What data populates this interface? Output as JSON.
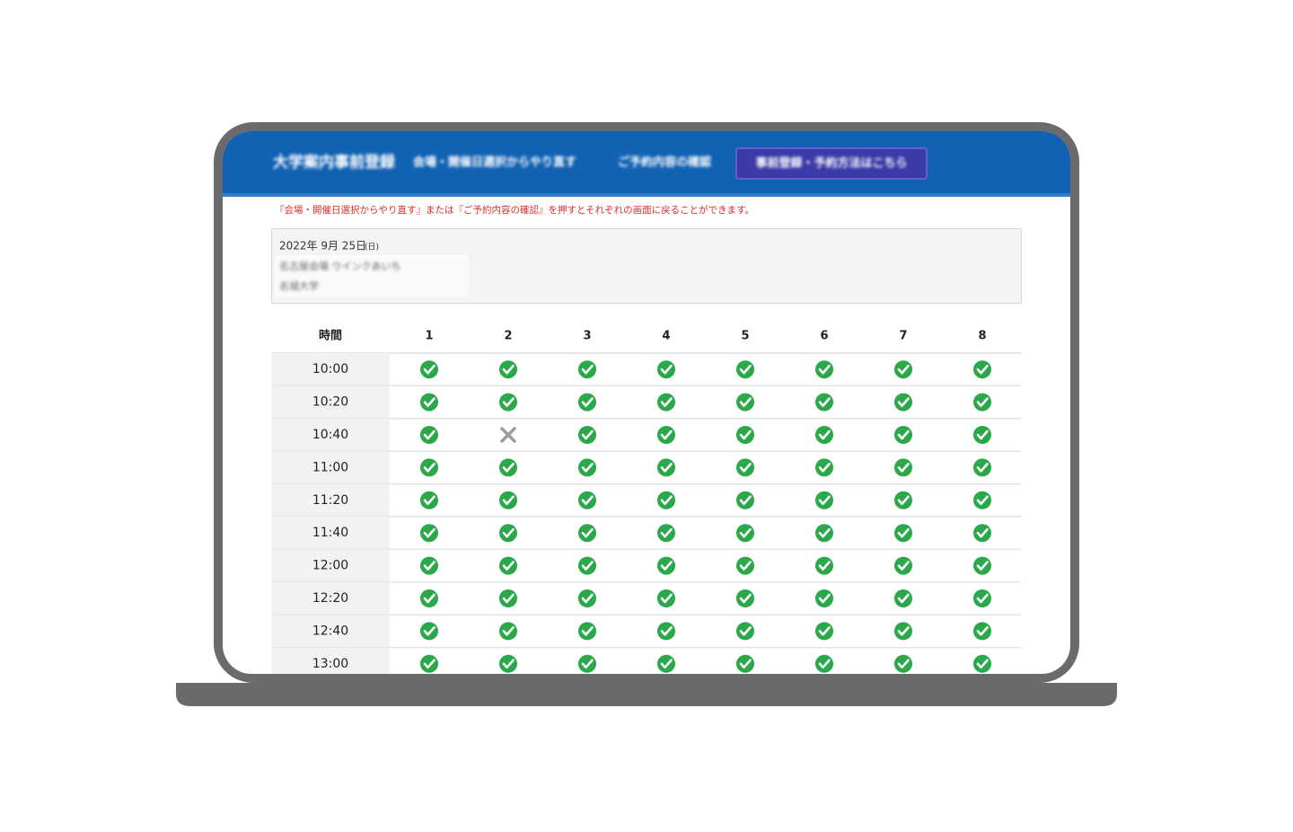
{
  "header": {
    "brand": "大学案内事前登録",
    "nav": [
      "会場・開催日選択からやり直す",
      "ご予約内容の確認"
    ],
    "button": "事前登録・予約方法はこちら"
  },
  "notice": "『会場・開催日選択からやり直す』または『ご予約内容の確認』を押すとそれぞれの画面に戻ることができます。",
  "event": {
    "date": "2022年 9月 25日",
    "weekday": "(日)",
    "venue": "名古屋会場 ウインクあいち",
    "host": "名城大学"
  },
  "table": {
    "headers": [
      "時間",
      "1",
      "2",
      "3",
      "4",
      "5",
      "6",
      "7",
      "8"
    ],
    "rows": [
      {
        "time": "10:00",
        "slots": [
          true,
          true,
          true,
          true,
          true,
          true,
          true,
          true
        ]
      },
      {
        "time": "10:20",
        "slots": [
          true,
          true,
          true,
          true,
          true,
          true,
          true,
          true
        ]
      },
      {
        "time": "10:40",
        "slots": [
          true,
          false,
          true,
          true,
          true,
          true,
          true,
          true
        ]
      },
      {
        "time": "11:00",
        "slots": [
          true,
          true,
          true,
          true,
          true,
          true,
          true,
          true
        ]
      },
      {
        "time": "11:20",
        "slots": [
          true,
          true,
          true,
          true,
          true,
          true,
          true,
          true
        ]
      },
      {
        "time": "11:40",
        "slots": [
          true,
          true,
          true,
          true,
          true,
          true,
          true,
          true
        ]
      },
      {
        "time": "12:00",
        "slots": [
          true,
          true,
          true,
          true,
          true,
          true,
          true,
          true
        ]
      },
      {
        "time": "12:20",
        "slots": [
          true,
          true,
          true,
          true,
          true,
          true,
          true,
          true
        ]
      },
      {
        "time": "12:40",
        "slots": [
          true,
          true,
          true,
          true,
          true,
          true,
          true,
          true
        ]
      },
      {
        "time": "13:00",
        "slots": [
          true,
          true,
          true,
          true,
          true,
          true,
          true,
          true
        ]
      }
    ]
  }
}
